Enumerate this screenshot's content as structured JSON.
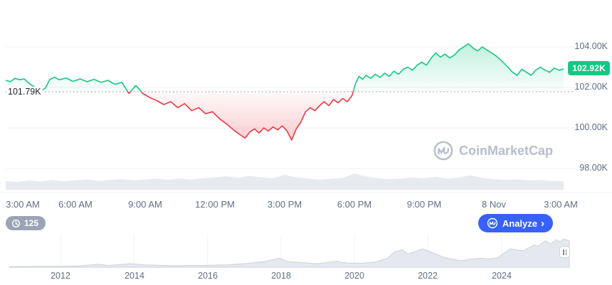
{
  "colors": {
    "green": "#16c784",
    "red": "#ea3943",
    "blue": "#3861fb",
    "grid": "#eff2f5",
    "axis_text": "#616e85",
    "baseline_dots": "#7d8597",
    "volume": "#e7eaef",
    "nav_fill": "#e5e8ee",
    "nav_stroke": "#ccd2da",
    "watermark": "#b6bdcc",
    "badge_gray": "#9aa4b6"
  },
  "chart_labels": {
    "baseline_label": "101.79K",
    "last_price_label": "102.92K"
  },
  "watermark": {
    "text": "CoinMarketCap"
  },
  "controls": {
    "history_count": "125",
    "analyze_label": "Analyze",
    "analyze_chevron": "›"
  },
  "chart_data": [
    {
      "type": "line",
      "title": "Price (24h, green above open / red below open)",
      "baseline": 101.79,
      "last_price": 102.92,
      "line_up_color": "#16c784",
      "line_down_color": "#ea3943",
      "ylim": [
        97.6,
        105.1
      ],
      "grid": true,
      "y_ticks": [
        {
          "v": 104,
          "label": "104.00K"
        },
        {
          "v": 102,
          "label": "102.00K"
        },
        {
          "v": 100,
          "label": "100.00K"
        },
        {
          "v": 98,
          "label": "98.00K"
        }
      ],
      "x_ticks": [
        {
          "t": 3,
          "label": "3:00 AM"
        },
        {
          "t": 6,
          "label": "6:00 AM"
        },
        {
          "t": 9,
          "label": "9:00 AM"
        },
        {
          "t": 12,
          "label": "12:00 PM"
        },
        {
          "t": 15,
          "label": "3:00 PM"
        },
        {
          "t": 18,
          "label": "6:00 PM"
        },
        {
          "t": 21,
          "label": "9:00 PM"
        },
        {
          "t": 24,
          "label": "8 Nov"
        },
        {
          "t": 27,
          "label": "3:00 AM"
        }
      ],
      "points": [
        [
          3.0,
          102.35
        ],
        [
          3.2,
          102.28
        ],
        [
          3.4,
          102.45
        ],
        [
          3.6,
          102.38
        ],
        [
          3.8,
          102.42
        ],
        [
          4.0,
          102.2
        ],
        [
          4.2,
          102.05
        ],
        [
          4.5,
          101.85
        ],
        [
          4.7,
          101.95
        ],
        [
          4.9,
          102.4
        ],
        [
          5.1,
          102.5
        ],
        [
          5.3,
          102.38
        ],
        [
          5.6,
          102.46
        ],
        [
          5.9,
          102.3
        ],
        [
          6.2,
          102.42
        ],
        [
          6.5,
          102.28
        ],
        [
          6.8,
          102.4
        ],
        [
          7.1,
          102.25
        ],
        [
          7.4,
          102.35
        ],
        [
          7.7,
          102.15
        ],
        [
          8.0,
          102.25
        ],
        [
          8.3,
          101.7
        ],
        [
          8.6,
          102.1
        ],
        [
          8.9,
          101.7
        ],
        [
          9.2,
          101.5
        ],
        [
          9.5,
          101.35
        ],
        [
          9.8,
          101.15
        ],
        [
          10.1,
          101.3
        ],
        [
          10.4,
          101.0
        ],
        [
          10.7,
          101.2
        ],
        [
          11.0,
          100.85
        ],
        [
          11.3,
          101.0
        ],
        [
          11.6,
          100.7
        ],
        [
          11.9,
          100.8
        ],
        [
          12.2,
          100.45
        ],
        [
          12.5,
          100.2
        ],
        [
          12.8,
          99.9
        ],
        [
          13.1,
          99.65
        ],
        [
          13.3,
          99.5
        ],
        [
          13.5,
          99.8
        ],
        [
          13.7,
          99.95
        ],
        [
          13.9,
          99.75
        ],
        [
          14.1,
          100.0
        ],
        [
          14.3,
          99.85
        ],
        [
          14.5,
          100.05
        ],
        [
          14.7,
          99.9
        ],
        [
          14.9,
          100.1
        ],
        [
          15.1,
          99.85
        ],
        [
          15.3,
          99.4
        ],
        [
          15.5,
          99.95
        ],
        [
          15.7,
          100.3
        ],
        [
          15.9,
          100.8
        ],
        [
          16.1,
          101.0
        ],
        [
          16.3,
          100.85
        ],
        [
          16.5,
          101.1
        ],
        [
          16.7,
          101.3
        ],
        [
          16.9,
          101.1
        ],
        [
          17.1,
          101.4
        ],
        [
          17.3,
          101.25
        ],
        [
          17.5,
          101.45
        ],
        [
          17.7,
          101.3
        ],
        [
          17.9,
          101.6
        ],
        [
          18.05,
          102.2
        ],
        [
          18.2,
          102.55
        ],
        [
          18.35,
          102.4
        ],
        [
          18.5,
          102.6
        ],
        [
          18.7,
          102.45
        ],
        [
          18.9,
          102.65
        ],
        [
          19.1,
          102.5
        ],
        [
          19.3,
          102.7
        ],
        [
          19.5,
          102.55
        ],
        [
          19.7,
          102.8
        ],
        [
          19.9,
          102.65
        ],
        [
          20.1,
          102.9
        ],
        [
          20.3,
          103.0
        ],
        [
          20.5,
          102.85
        ],
        [
          20.7,
          103.1
        ],
        [
          20.9,
          103.25
        ],
        [
          21.1,
          103.1
        ],
        [
          21.3,
          103.45
        ],
        [
          21.5,
          103.7
        ],
        [
          21.7,
          103.5
        ],
        [
          21.9,
          103.65
        ],
        [
          22.1,
          103.45
        ],
        [
          22.3,
          103.6
        ],
        [
          22.5,
          103.85
        ],
        [
          22.7,
          104.0
        ],
        [
          22.9,
          104.15
        ],
        [
          23.1,
          103.95
        ],
        [
          23.3,
          103.8
        ],
        [
          23.5,
          104.0
        ],
        [
          23.7,
          103.85
        ],
        [
          23.9,
          103.7
        ],
        [
          24.1,
          103.55
        ],
        [
          24.35,
          103.3
        ],
        [
          24.6,
          103.0
        ],
        [
          24.8,
          102.75
        ],
        [
          25.0,
          102.6
        ],
        [
          25.2,
          102.9
        ],
        [
          25.4,
          102.75
        ],
        [
          25.6,
          102.6
        ],
        [
          25.8,
          102.85
        ],
        [
          26.0,
          103.0
        ],
        [
          26.2,
          102.85
        ],
        [
          26.4,
          102.75
        ],
        [
          26.6,
          102.95
        ],
        [
          26.8,
          102.85
        ],
        [
          27.0,
          102.92
        ]
      ],
      "volume": [
        [
          3,
          0.5
        ],
        [
          3.5,
          0.45
        ],
        [
          4,
          0.55
        ],
        [
          4.5,
          0.48
        ],
        [
          5,
          0.58
        ],
        [
          5.5,
          0.5
        ],
        [
          6,
          0.55
        ],
        [
          6.5,
          0.6
        ],
        [
          7,
          0.52
        ],
        [
          7.5,
          0.58
        ],
        [
          8,
          0.62
        ],
        [
          8.5,
          0.55
        ],
        [
          9,
          0.6
        ],
        [
          9.5,
          0.65
        ],
        [
          10,
          0.58
        ],
        [
          10.5,
          0.66
        ],
        [
          11,
          0.6
        ],
        [
          11.5,
          0.68
        ],
        [
          12,
          0.72
        ],
        [
          12.5,
          0.8
        ],
        [
          13,
          0.7
        ],
        [
          13.5,
          0.82
        ],
        [
          14,
          0.72
        ],
        [
          14.5,
          0.68
        ],
        [
          15,
          0.88
        ],
        [
          15.5,
          0.72
        ],
        [
          16,
          0.66
        ],
        [
          16.5,
          0.6
        ],
        [
          17,
          0.64
        ],
        [
          17.5,
          0.7
        ],
        [
          18,
          0.95
        ],
        [
          18.5,
          0.78
        ],
        [
          19,
          0.68
        ],
        [
          19.5,
          0.62
        ],
        [
          20,
          0.66
        ],
        [
          20.5,
          0.72
        ],
        [
          21,
          0.68
        ],
        [
          21.5,
          0.76
        ],
        [
          22,
          0.66
        ],
        [
          22.5,
          0.72
        ],
        [
          23,
          0.85
        ],
        [
          23.5,
          0.7
        ],
        [
          24,
          0.62
        ],
        [
          24.5,
          0.58
        ],
        [
          25,
          0.6
        ],
        [
          25.5,
          0.55
        ],
        [
          26,
          0.58
        ],
        [
          26.5,
          0.52
        ],
        [
          27,
          0.5
        ]
      ]
    },
    {
      "type": "area",
      "title": "All-time range navigator",
      "xlim": [
        2010.5,
        2025.85
      ],
      "x_ticks": [
        {
          "year": 2012,
          "label": "2012"
        },
        {
          "year": 2014,
          "label": "2014"
        },
        {
          "year": 2016,
          "label": "2016"
        },
        {
          "year": 2018,
          "label": "2018"
        },
        {
          "year": 2020,
          "label": "2020"
        },
        {
          "year": 2022,
          "label": "2022"
        },
        {
          "year": 2024,
          "label": "2024"
        }
      ],
      "points": [
        [
          2010.6,
          0.02
        ],
        [
          2011.5,
          0.03
        ],
        [
          2012.0,
          0.03
        ],
        [
          2012.5,
          0.04
        ],
        [
          2013.0,
          0.1
        ],
        [
          2013.3,
          0.06
        ],
        [
          2013.9,
          0.12
        ],
        [
          2014.3,
          0.08
        ],
        [
          2015.0,
          0.05
        ],
        [
          2015.8,
          0.06
        ],
        [
          2016.5,
          0.08
        ],
        [
          2017.0,
          0.12
        ],
        [
          2017.5,
          0.18
        ],
        [
          2017.95,
          0.3
        ],
        [
          2018.2,
          0.18
        ],
        [
          2018.7,
          0.14
        ],
        [
          2019.0,
          0.12
        ],
        [
          2019.5,
          0.2
        ],
        [
          2019.8,
          0.14
        ],
        [
          2020.2,
          0.13
        ],
        [
          2020.6,
          0.18
        ],
        [
          2020.9,
          0.3
        ],
        [
          2021.1,
          0.52
        ],
        [
          2021.3,
          0.58
        ],
        [
          2021.45,
          0.45
        ],
        [
          2021.6,
          0.5
        ],
        [
          2021.85,
          0.62
        ],
        [
          2022.0,
          0.55
        ],
        [
          2022.2,
          0.45
        ],
        [
          2022.4,
          0.35
        ],
        [
          2022.6,
          0.28
        ],
        [
          2022.9,
          0.22
        ],
        [
          2023.1,
          0.26
        ],
        [
          2023.4,
          0.3
        ],
        [
          2023.7,
          0.28
        ],
        [
          2023.9,
          0.32
        ],
        [
          2024.1,
          0.5
        ],
        [
          2024.25,
          0.62
        ],
        [
          2024.4,
          0.58
        ],
        [
          2024.6,
          0.55
        ],
        [
          2024.75,
          0.65
        ],
        [
          2024.9,
          0.75
        ],
        [
          2025.0,
          0.7
        ],
        [
          2025.1,
          0.8
        ],
        [
          2025.2,
          0.88
        ],
        [
          2025.35,
          0.78
        ],
        [
          2025.5,
          0.92
        ],
        [
          2025.6,
          0.85
        ],
        [
          2025.7,
          0.95
        ],
        [
          2025.85,
          0.88
        ]
      ]
    }
  ]
}
